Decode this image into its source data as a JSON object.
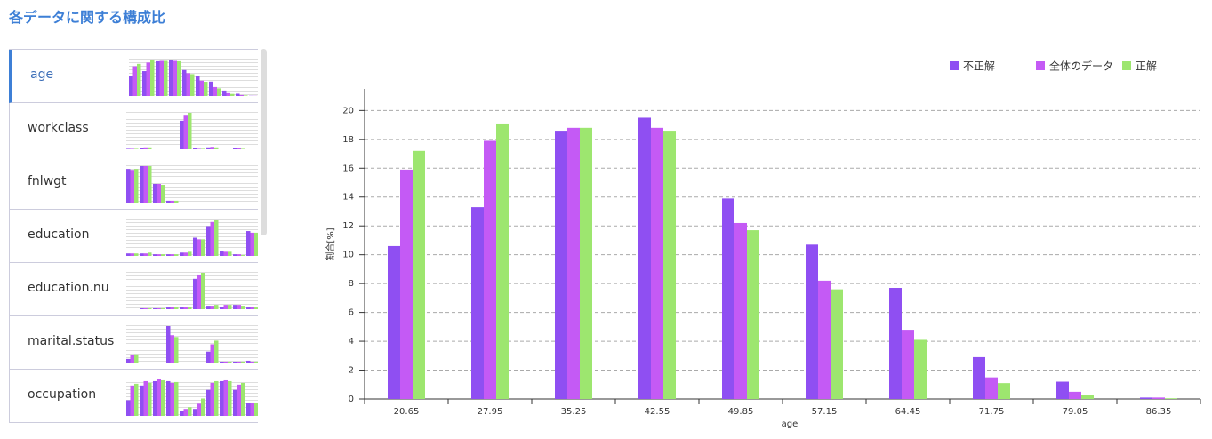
{
  "header": {
    "title": "各データに関する構成比"
  },
  "sidebar": {
    "items": [
      {
        "label": "age",
        "selected": true,
        "groups": [
          [
            10.6,
            15.9,
            17.2
          ],
          [
            13.3,
            17.9,
            19.1
          ],
          [
            18.6,
            18.8,
            18.8
          ],
          [
            19.5,
            18.8,
            18.6
          ],
          [
            13.9,
            12.2,
            11.7
          ],
          [
            10.7,
            8.2,
            7.6
          ],
          [
            7.7,
            4.8,
            4.1
          ],
          [
            2.9,
            1.5,
            1.1
          ],
          [
            1.2,
            0.5,
            0.3
          ],
          [
            0.1,
            0.1,
            0.05
          ]
        ]
      },
      {
        "label": "workclass",
        "selected": false,
        "groups": [
          [
            1,
            1,
            1
          ],
          [
            3,
            4,
            4
          ],
          [
            0,
            0,
            0
          ],
          [
            0,
            0,
            0
          ],
          [
            58,
            70,
            74
          ],
          [
            2,
            1,
            1
          ],
          [
            4,
            5,
            4
          ],
          [
            0,
            0,
            0
          ],
          [
            2,
            2,
            1
          ],
          [
            0,
            0,
            0
          ]
        ]
      },
      {
        "label": "fnlwgt",
        "selected": false,
        "groups": [
          [
            36,
            35,
            36
          ],
          [
            39,
            39,
            39
          ],
          [
            20,
            20,
            19
          ],
          [
            2,
            2,
            2
          ],
          [
            0,
            0,
            0
          ],
          [
            0,
            0,
            0
          ],
          [
            0,
            0,
            0
          ],
          [
            0,
            0,
            0
          ],
          [
            0,
            0,
            0
          ],
          [
            0,
            0,
            0
          ]
        ]
      },
      {
        "label": "education",
        "selected": false,
        "groups": [
          [
            3,
            3,
            3
          ],
          [
            3,
            3,
            4
          ],
          [
            2,
            2,
            2
          ],
          [
            2,
            2,
            2
          ],
          [
            4,
            4,
            5
          ],
          [
            22,
            20,
            20
          ],
          [
            36,
            41,
            44
          ],
          [
            6,
            5,
            5
          ],
          [
            2,
            2,
            1
          ],
          [
            30,
            28,
            28
          ]
        ]
      },
      {
        "label": "education.nu",
        "selected": false,
        "groups": [
          [
            0,
            0,
            0
          ],
          [
            1,
            1,
            1
          ],
          [
            1,
            1,
            1
          ],
          [
            2,
            2,
            2
          ],
          [
            2,
            2,
            2
          ],
          [
            35,
            40,
            42
          ],
          [
            4,
            4,
            5
          ],
          [
            3,
            5,
            5
          ],
          [
            5,
            5,
            4
          ],
          [
            2,
            3,
            2
          ]
        ]
      },
      {
        "label": "marital.status",
        "selected": false,
        "groups": [
          [
            4,
            8,
            9
          ],
          [
            0,
            0,
            0
          ],
          [
            0,
            0,
            0
          ],
          [
            40,
            30,
            28
          ],
          [
            0,
            0,
            0
          ],
          [
            0,
            0,
            0
          ],
          [
            12,
            20,
            24
          ],
          [
            1,
            1,
            1
          ],
          [
            1,
            1,
            1
          ],
          [
            2,
            1,
            1
          ]
        ]
      },
      {
        "label": "occupation",
        "selected": false,
        "groups": [
          [
            18,
            35,
            37
          ],
          [
            35,
            40,
            38
          ],
          [
            40,
            42,
            41
          ],
          [
            40,
            38,
            39
          ],
          [
            6,
            8,
            10
          ],
          [
            8,
            14,
            20
          ],
          [
            30,
            38,
            40
          ],
          [
            40,
            41,
            40
          ],
          [
            30,
            36,
            38
          ],
          [
            15,
            15,
            15
          ]
        ]
      }
    ]
  },
  "chart_data": {
    "type": "bar",
    "x_label": "age",
    "y_label": "割合[%]",
    "categories": [
      "20.65",
      "27.95",
      "35.25",
      "42.55",
      "49.85",
      "57.15",
      "64.45",
      "71.75",
      "79.05",
      "86.35"
    ],
    "series": [
      {
        "name": "不正解",
        "color": "#8f4ff2",
        "values": [
          10.6,
          13.3,
          18.6,
          19.5,
          13.9,
          10.7,
          7.7,
          2.9,
          1.2,
          0.1
        ]
      },
      {
        "name": "全体のデータ",
        "color": "#c45af5",
        "values": [
          15.9,
          17.9,
          18.8,
          18.8,
          12.2,
          8.2,
          4.8,
          1.5,
          0.5,
          0.1
        ]
      },
      {
        "name": "正解",
        "color": "#9de66f",
        "values": [
          17.2,
          19.1,
          18.8,
          18.6,
          11.7,
          7.6,
          4.1,
          1.1,
          0.3,
          0.05
        ]
      }
    ],
    "ylim": [
      0,
      21.5
    ],
    "yticks": [
      0,
      2,
      4,
      6,
      8,
      10,
      12,
      14,
      16,
      18,
      20
    ],
    "grid": true,
    "legend": "top-right"
  }
}
